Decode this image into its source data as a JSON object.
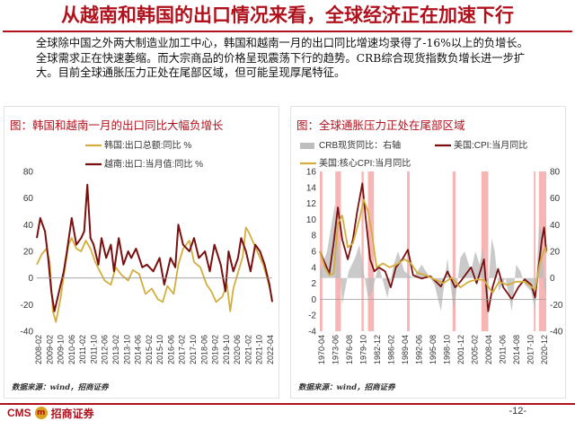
{
  "slide": {
    "title": "从越南和韩国的出口情况来看，全球经济正在加速下行",
    "body": "全球除中国之外两大制造业加工中心，韩国和越南一月的出口同比增速均录得了-16%以上的负增长。全球需求正在快速萎缩。而大宗商品的价格呈现震荡下行的趋势。CRB综合现货指数负增长进一步扩大。目前全球通胀压力正处在尾部区域，但可能呈现厚尾特征。",
    "page_number": "-12-",
    "logo_cms": "CMS",
    "logo_icon_glyph": "m",
    "logo_name": "招商证券"
  },
  "chart_data": [
    {
      "type": "line",
      "title": "图：韩国和越南一月的出口同比大幅负增长",
      "source": "数据来源：wind，招商证券",
      "ylim": [
        -40,
        80
      ],
      "yticks": [
        -40,
        -20,
        0,
        20,
        40,
        60,
        80
      ],
      "x_range": [
        2008.08,
        2023.08
      ],
      "x_tick_labels": [
        "2008-02",
        "2009-02",
        "2009-10",
        "2010-06",
        "2011-02",
        "2011-10",
        "2012-06",
        "2013-02",
        "2013-10",
        "2014-06",
        "2015-02",
        "2015-10",
        "2016-06",
        "2017-02",
        "2017-10",
        "2018-06",
        "2019-02",
        "2019-10",
        "2020-06",
        "2021-02",
        "2021-10",
        "2022-04"
      ],
      "grid": false,
      "legend_position": "top-left",
      "series": [
        {
          "name": "韩国:出口总额:同比 %",
          "color": "#d4ae3c",
          "x": [
            2008.08,
            2008.4,
            2008.7,
            2008.9,
            2009.1,
            2009.3,
            2009.6,
            2009.9,
            2010.1,
            2010.3,
            2010.6,
            2010.9,
            2011.2,
            2011.5,
            2011.8,
            2012.1,
            2012.4,
            2012.8,
            2013.1,
            2013.5,
            2013.9,
            2014.2,
            2014.6,
            2015.0,
            2015.4,
            2015.8,
            2016.1,
            2016.4,
            2016.8,
            2017.1,
            2017.4,
            2017.8,
            2018.1,
            2018.5,
            2018.9,
            2019.2,
            2019.5,
            2019.9,
            2020.2,
            2020.4,
            2020.6,
            2020.9,
            2021.2,
            2021.4,
            2021.6,
            2021.9,
            2022.2,
            2022.5,
            2022.8,
            2023.08
          ],
          "values": [
            10,
            18,
            22,
            12,
            -25,
            -33,
            -15,
            10,
            25,
            30,
            22,
            20,
            28,
            22,
            12,
            5,
            -2,
            -5,
            8,
            2,
            -2,
            6,
            3,
            -12,
            -8,
            -16,
            -18,
            -6,
            -12,
            10,
            22,
            28,
            12,
            8,
            -5,
            -10,
            -18,
            -14,
            -5,
            -25,
            -8,
            4,
            16,
            38,
            34,
            26,
            18,
            10,
            -2,
            -16
          ]
        },
        {
          "name": "越南:出口:当月值:同比 %",
          "color": "#7a0f0f",
          "x": [
            2008.08,
            2008.3,
            2008.6,
            2008.8,
            2009.0,
            2009.2,
            2009.5,
            2009.8,
            2010.0,
            2010.3,
            2010.6,
            2010.9,
            2011.1,
            2011.3,
            2011.5,
            2011.7,
            2012.0,
            2012.2,
            2012.5,
            2012.8,
            2013.0,
            2013.3,
            2013.6,
            2013.9,
            2014.1,
            2014.4,
            2014.8,
            2015.1,
            2015.5,
            2015.9,
            2016.2,
            2016.6,
            2016.9,
            2017.1,
            2017.4,
            2017.8,
            2018.1,
            2018.4,
            2018.8,
            2019.1,
            2019.4,
            2019.8,
            2020.1,
            2020.3,
            2020.6,
            2020.9,
            2021.1,
            2021.4,
            2021.7,
            2022.0,
            2022.3,
            2022.6,
            2022.9,
            2023.08
          ],
          "values": [
            30,
            45,
            35,
            15,
            -10,
            -25,
            -10,
            5,
            20,
            45,
            25,
            30,
            35,
            70,
            30,
            25,
            10,
            30,
            15,
            25,
            5,
            30,
            10,
            20,
            15,
            22,
            8,
            10,
            5,
            15,
            -5,
            15,
            8,
            40,
            25,
            20,
            30,
            15,
            20,
            5,
            25,
            10,
            -10,
            20,
            5,
            15,
            30,
            20,
            5,
            25,
            20,
            10,
            -5,
            -18
          ]
        }
      ]
    },
    {
      "type": "line",
      "title": "图：全球通胀压力正处在尾部区域",
      "source": "数据来源：wind，招商证券",
      "ylim": [
        -4,
        16
      ],
      "yticks": [
        -4,
        -2,
        0,
        2,
        4,
        6,
        8,
        10,
        12,
        14,
        16
      ],
      "y2lim": [
        -40,
        80
      ],
      "y2ticks": [
        -40,
        -20,
        0,
        20,
        40,
        60,
        80
      ],
      "x_range": [
        1970.3,
        2023.0
      ],
      "x_tick_labels": [
        "1970-04",
        "1973-06",
        "1976-08",
        "1979-10",
        "1982-12",
        "1986-02",
        "1989-04",
        "1992-06",
        "1995-08",
        "1998-10",
        "2001-12",
        "2005-02",
        "2008-04",
        "2011-06",
        "2014-08",
        "2017-10",
        "2020-12"
      ],
      "grid": false,
      "legend_position": "top",
      "recession_bands": [
        [
          1970.3,
          1970.9
        ],
        [
          1973.9,
          1975.2
        ],
        [
          1980.0,
          1980.5
        ],
        [
          1981.5,
          1982.9
        ],
        [
          1990.6,
          1991.2
        ],
        [
          2001.2,
          2001.9
        ],
        [
          2007.9,
          2009.5
        ],
        [
          2020.1,
          2020.4
        ],
        [
          2021.3,
          2023.0
        ]
      ],
      "series": [
        {
          "name": "CRB现货同比：右轴",
          "axis": "right",
          "color": "#bdbdbd",
          "x": [
            1970.3,
            1972,
            1973,
            1973.8,
            1974.5,
            1975.5,
            1977,
            1978.5,
            1979.5,
            1980.5,
            1981.5,
            1982.5,
            1984,
            1986,
            1987.5,
            1988.5,
            1990,
            1992,
            1994,
            1995,
            1997,
            1998.5,
            2000,
            2001.5,
            2003,
            2004,
            2005.5,
            2006.5,
            2007.5,
            2008.3,
            2009,
            2010.3,
            2011,
            2012,
            2013.5,
            2015,
            2016,
            2017,
            2018,
            2019.5,
            2020.4,
            2021.3,
            2021.9,
            2022.5,
            2023.0
          ],
          "values": [
            5,
            20,
            40,
            55,
            30,
            -20,
            5,
            15,
            25,
            5,
            -15,
            -10,
            10,
            -15,
            10,
            20,
            5,
            0,
            10,
            5,
            -5,
            -25,
            15,
            -25,
            15,
            20,
            5,
            20,
            10,
            25,
            -30,
            30,
            20,
            -10,
            0,
            -25,
            10,
            5,
            -5,
            -10,
            -25,
            40,
            35,
            -5,
            -15
          ]
        },
        {
          "name": "美国:CPI:当月同比",
          "axis": "left",
          "color": "#7a0f0f",
          "x": [
            1970.3,
            1971.5,
            1972.5,
            1973.5,
            1974.5,
            1975.5,
            1976.8,
            1978,
            1979,
            1980.2,
            1981,
            1982,
            1983,
            1984,
            1985.5,
            1986.8,
            1988,
            1989.5,
            1990.8,
            1992,
            1994,
            1996,
            1998.5,
            2000,
            2001.8,
            2003,
            2005.5,
            2006.8,
            2008.5,
            2009.5,
            2010.5,
            2011.8,
            2013,
            2015,
            2016.5,
            2018,
            2019.5,
            2020.4,
            2021.3,
            2022.0,
            2022.5,
            2023.0
          ],
          "values": [
            6,
            4.5,
            3.2,
            7,
            11.5,
            7.5,
            5,
            7.5,
            11,
            14.5,
            10,
            5,
            3.5,
            4,
            3.5,
            1.5,
            4,
            5,
            6.2,
            3,
            2.6,
            2.9,
            1.6,
            3.5,
            1.5,
            2.2,
            4,
            2,
            5,
            -1.5,
            1.5,
            3.8,
            1.5,
            0,
            1.5,
            2.5,
            1.8,
            0.2,
            4.5,
            7.5,
            9,
            6
          ]
        },
        {
          "name": "美国:核心CPI:当月同比",
          "axis": "left",
          "color": "#d4ae3c",
          "x": [
            1970.3,
            1971.5,
            1972.5,
            1973.5,
            1974.5,
            1975.5,
            1976.8,
            1978,
            1979.5,
            1980.5,
            1981.5,
            1982.5,
            1983.5,
            1985,
            1986.5,
            1988,
            1990,
            1991.5,
            1993,
            1995,
            1997,
            1999,
            2001,
            2003,
            2005,
            2007,
            2008.5,
            2010.5,
            2012,
            2014,
            2016,
            2018,
            2020.4,
            2021.5,
            2022.7,
            2023.0
          ],
          "values": [
            6,
            4,
            3,
            3.2,
            9.5,
            10.5,
            6.5,
            7,
            10,
            12.5,
            11,
            8,
            4,
            4.5,
            4,
            4.3,
            5,
            4.5,
            3.3,
            3,
            2.5,
            2,
            2.7,
            1.5,
            2.2,
            2.5,
            2.4,
            0.8,
            2.2,
            1.8,
            2.2,
            2.2,
            1.2,
            4.5,
            6.5,
            5.8
          ]
        }
      ]
    }
  ]
}
